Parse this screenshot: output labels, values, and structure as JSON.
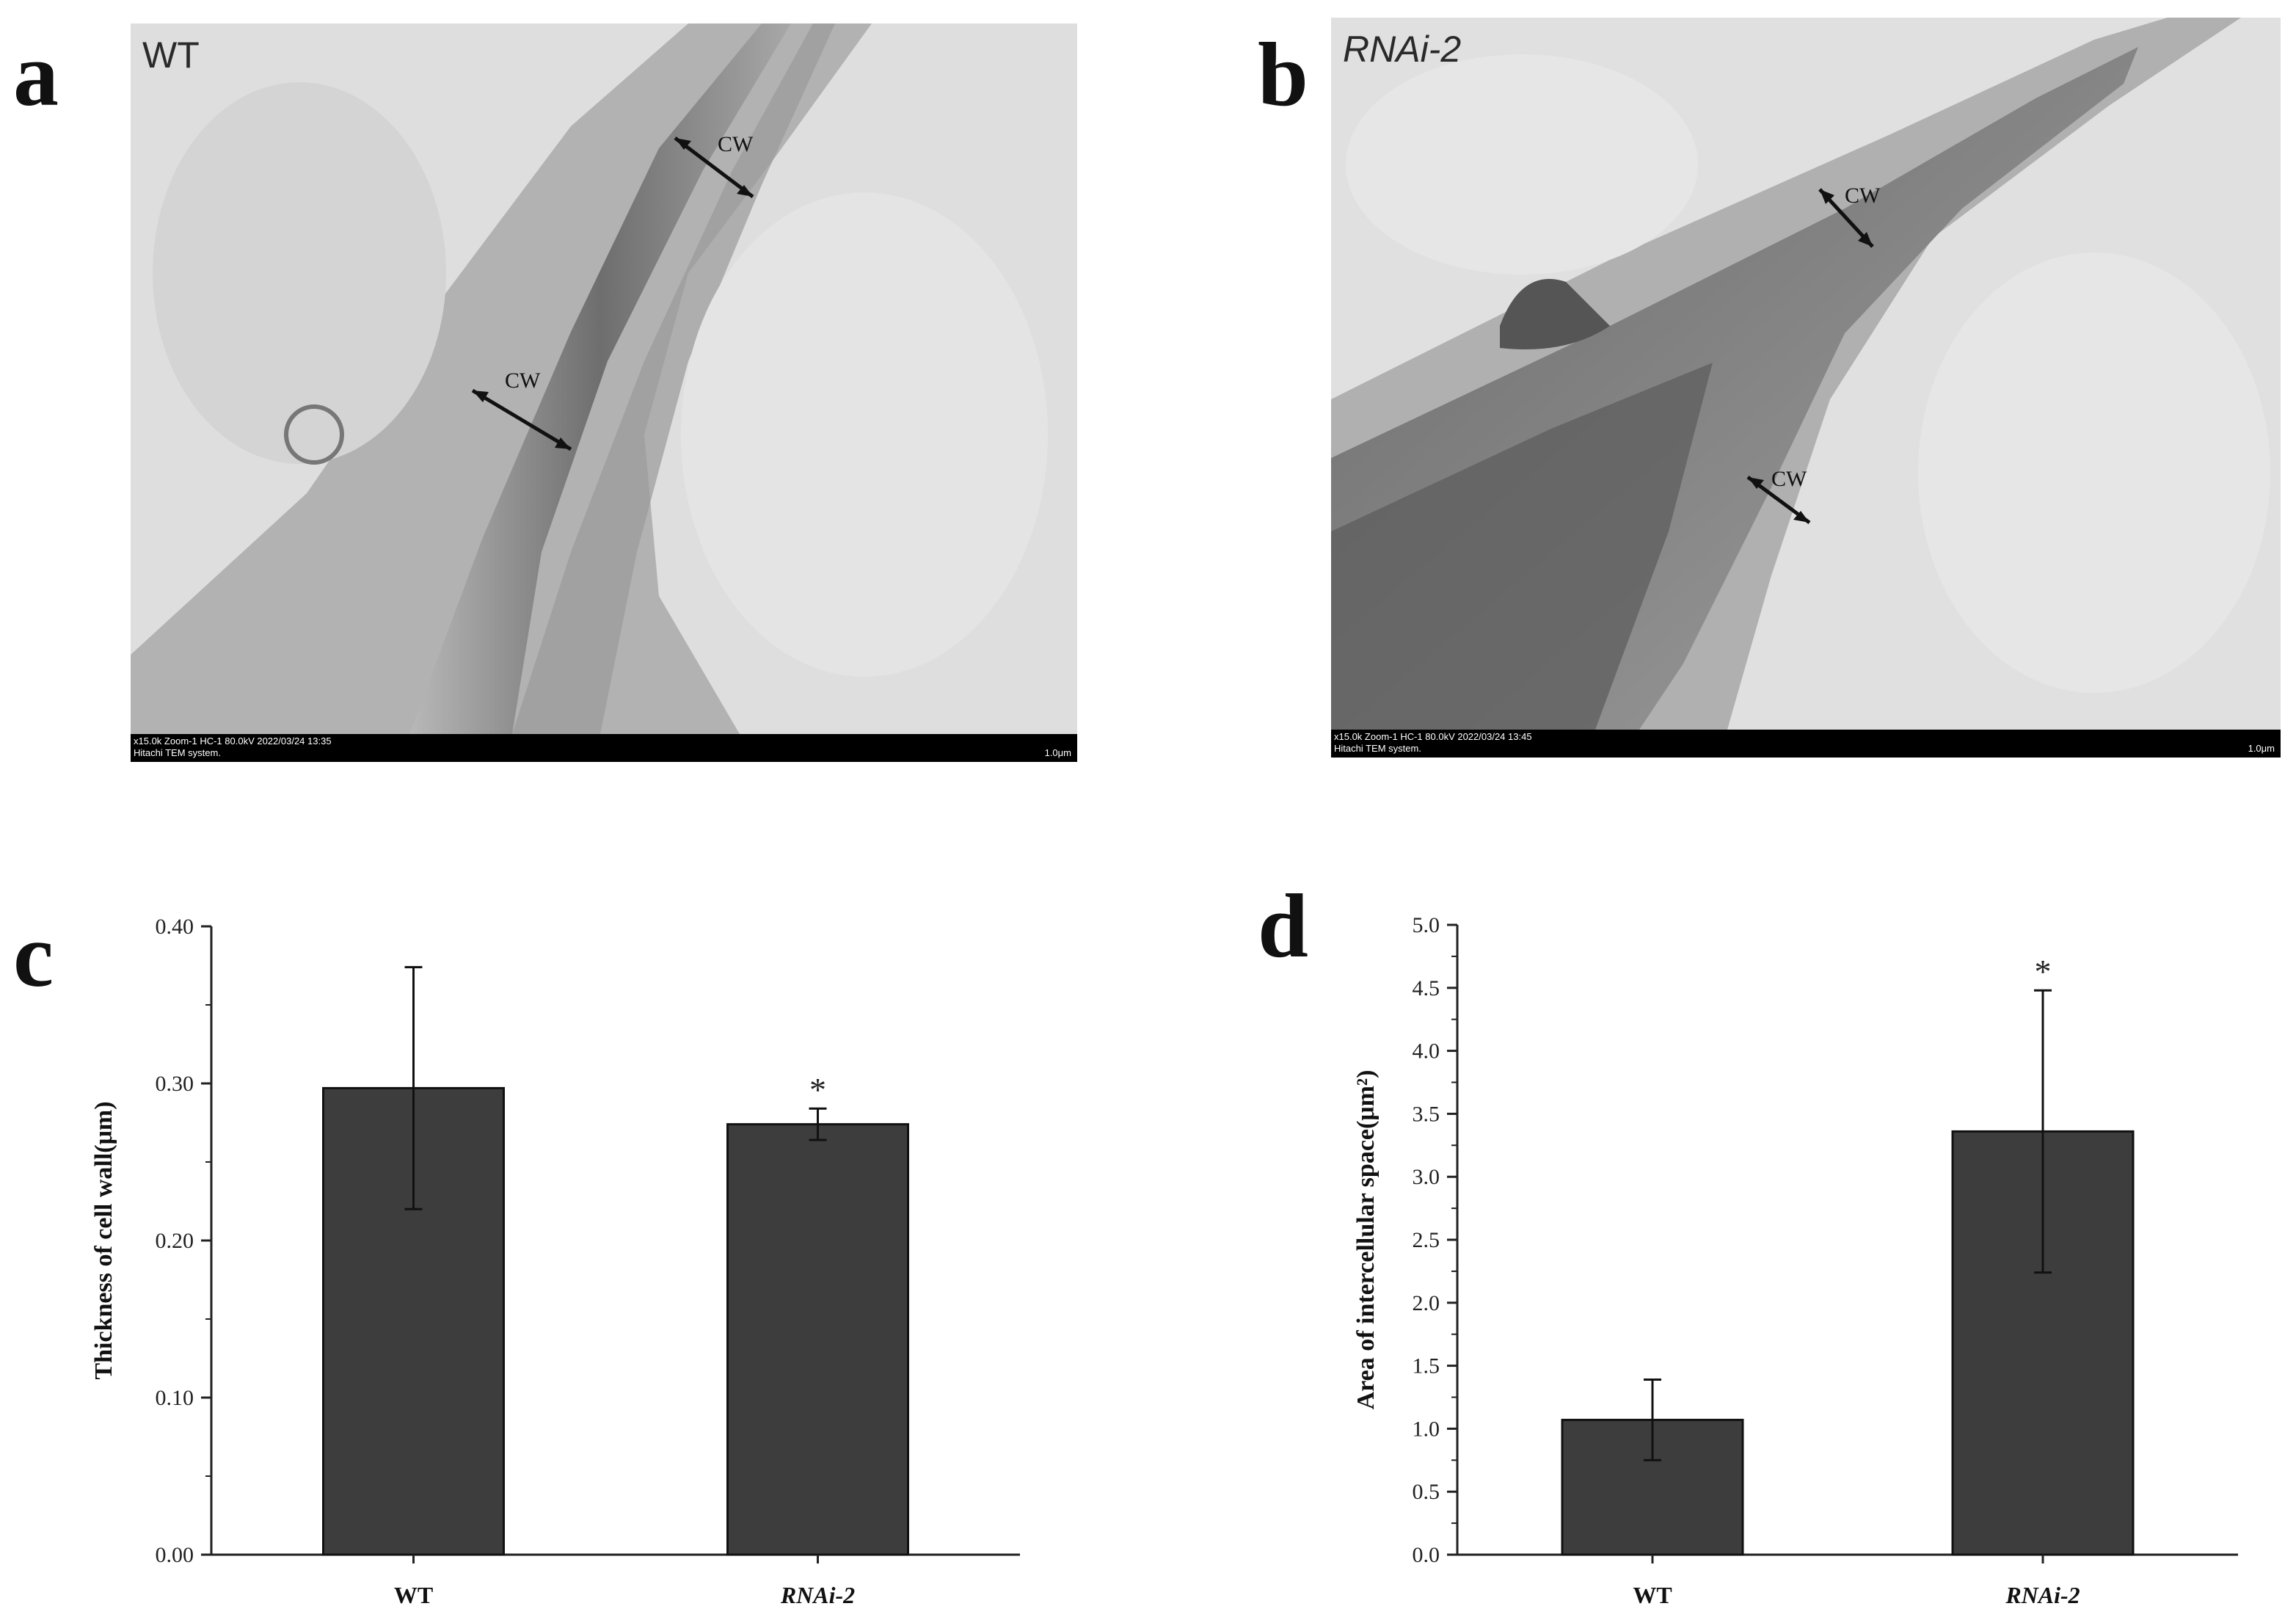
{
  "panels": {
    "a": {
      "letter": "a",
      "label": "WT",
      "info1": "x15.0k Zoom-1 HC-1 80.0kV 2022/03/24 13:35",
      "info2": "Hitachi TEM system.",
      "scale": "1.0μm",
      "cw_labels": [
        "CW",
        "CW"
      ]
    },
    "b": {
      "letter": "b",
      "label": "RNAi-2",
      "info1": "x15.0k Zoom-1 HC-1 80.0kV 2022/03/24 13:45",
      "info2": "Hitachi TEM system.",
      "scale": "1.0μm",
      "cw_labels": [
        "CW",
        "CW"
      ]
    },
    "c": {
      "letter": "c"
    },
    "d": {
      "letter": "d"
    }
  },
  "colors": {
    "bar": "#3d3d3d",
    "axis": "#222222",
    "tem_bg": "#dcdcdc"
  },
  "chart_data": [
    {
      "type": "bar",
      "categories": [
        "WT",
        "RNAi-2"
      ],
      "values": [
        0.297,
        0.274
      ],
      "errors": [
        0.077,
        0.01
      ],
      "significance": [
        "",
        "*"
      ],
      "ylabel": "Thickness of cell wall(μm)",
      "ylim": [
        0,
        0.4
      ],
      "yticks": [
        "0.00",
        "0.10",
        "0.20",
        "0.30",
        "0.40"
      ],
      "grid": false
    },
    {
      "type": "bar",
      "categories": [
        "WT",
        "RNAi-2"
      ],
      "values": [
        1.07,
        3.36
      ],
      "errors": [
        0.32,
        1.12
      ],
      "significance": [
        "",
        "*"
      ],
      "ylabel": "Area of intercellular space(μm²)",
      "ylim": [
        0,
        5.0
      ],
      "yticks": [
        "0.0",
        "0.5",
        "1.0",
        "1.5",
        "2.0",
        "2.5",
        "3.0",
        "3.5",
        "4.0",
        "4.5",
        "5.0"
      ],
      "grid": false
    }
  ]
}
